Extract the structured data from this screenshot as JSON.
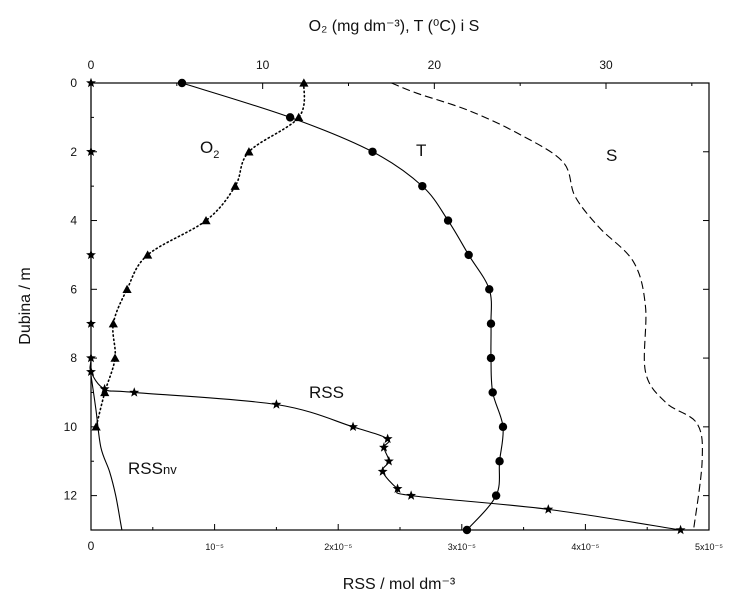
{
  "chart_data": {
    "type": "line",
    "title": "",
    "y_axis": {
      "label": "Dubina / m",
      "range": [
        0,
        13
      ],
      "ticks": [
        0,
        2,
        4,
        6,
        8,
        10,
        12
      ],
      "inverted": true
    },
    "x_top": {
      "label": "O₂ (mg dm⁻³), T (⁰C) i S",
      "range": [
        0,
        36
      ],
      "ticks": [
        0,
        10,
        20,
        30
      ]
    },
    "x_bottom": {
      "label": "RSS / mol dm⁻³",
      "range": [
        0,
        5e-05
      ],
      "ticks": [
        0,
        1e-05,
        2e-05,
        3e-05,
        4e-05,
        5e-05
      ],
      "tick_labels": [
        "0",
        "10⁻⁵",
        "2x10⁻⁵",
        "3x10⁻⁵",
        "4x10⁻⁵",
        "5x10⁻⁵"
      ]
    },
    "series": [
      {
        "name": "T",
        "axis": "top",
        "marker": "circle",
        "line": "solid",
        "points": [
          [
            5.3,
            0
          ],
          [
            11.6,
            1
          ],
          [
            16.4,
            2
          ],
          [
            19.3,
            3
          ],
          [
            20.8,
            4
          ],
          [
            22.0,
            5
          ],
          [
            23.2,
            6
          ],
          [
            23.3,
            7
          ],
          [
            23.3,
            8
          ],
          [
            23.4,
            9
          ],
          [
            24.0,
            10
          ],
          [
            23.8,
            11
          ],
          [
            23.6,
            12
          ],
          [
            21.9,
            13
          ]
        ]
      },
      {
        "name": "O₂",
        "axis": "top",
        "marker": "triangle",
        "line": "dotted",
        "points": [
          [
            12.4,
            0
          ],
          [
            12.1,
            1
          ],
          [
            9.2,
            2
          ],
          [
            8.4,
            3
          ],
          [
            6.7,
            4
          ],
          [
            3.3,
            5
          ],
          [
            2.1,
            6
          ],
          [
            1.3,
            7
          ],
          [
            1.4,
            8
          ],
          [
            0.8,
            9
          ],
          [
            0.3,
            10
          ]
        ]
      },
      {
        "name": "S",
        "axis": "top",
        "marker": "none",
        "line": "dashed",
        "points": [
          [
            17.5,
            0
          ],
          [
            19,
            0.3
          ],
          [
            22,
            0.8
          ],
          [
            25,
            1.5
          ],
          [
            27.5,
            2.3
          ],
          [
            28.2,
            3.3
          ],
          [
            29.6,
            4.2
          ],
          [
            31.6,
            5.2
          ],
          [
            32.3,
            6.5
          ],
          [
            32.3,
            8.4
          ],
          [
            33.5,
            9.3
          ],
          [
            35.3,
            9.9
          ],
          [
            35.6,
            11
          ],
          [
            35.1,
            13
          ]
        ]
      },
      {
        "name": "RSS",
        "axis": "bottom",
        "marker": "star",
        "line": "solid",
        "points": [
          [
            0,
            0
          ],
          [
            0,
            2
          ],
          [
            0,
            5
          ],
          [
            0,
            7
          ],
          [
            0,
            8
          ],
          [
            0,
            8.4
          ],
          [
            1.1e-06,
            8.9
          ],
          [
            3.5e-06,
            9.0
          ],
          [
            1.5e-05,
            9.35
          ],
          [
            2.12e-05,
            10.0
          ],
          [
            2.4e-05,
            10.35
          ],
          [
            2.37e-05,
            10.6
          ],
          [
            2.41e-05,
            11.0
          ],
          [
            2.36e-05,
            11.3
          ],
          [
            2.48e-05,
            11.8
          ],
          [
            2.59e-05,
            12.0
          ],
          [
            3.7e-05,
            12.4
          ],
          [
            4.77e-05,
            13.0
          ]
        ]
      },
      {
        "name": "RSSnv",
        "axis": "bottom",
        "marker": "none",
        "line": "solid",
        "points": [
          [
            0,
            8.5
          ],
          [
            4e-07,
            9.5
          ],
          [
            8e-07,
            10.6
          ],
          [
            1.5e-06,
            11.3
          ],
          [
            2e-06,
            12.0
          ],
          [
            2.4e-06,
            12.8
          ],
          [
            2.5e-06,
            13.0
          ]
        ]
      }
    ],
    "series_labels": {
      "T": "T",
      "O2_main": "O",
      "O2_sub": "2",
      "S": "S",
      "RSS": "RSS",
      "RSSnv_main": "RSS",
      "RSSnv_sub": "nv"
    },
    "grid": false,
    "legend": "none"
  }
}
